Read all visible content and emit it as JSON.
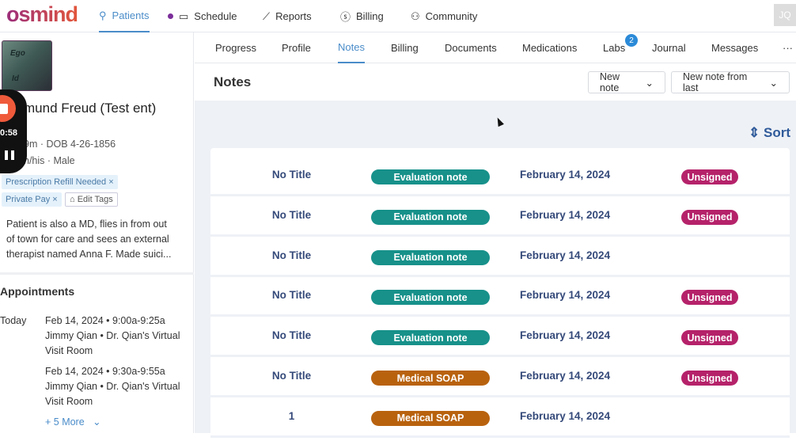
{
  "nav": {
    "logo": "osmind",
    "items": [
      {
        "label": "Patients",
        "icon": "person-icon"
      },
      {
        "label": "Schedule",
        "icon": "calendar-icon"
      },
      {
        "label": "Reports",
        "icon": "chart-icon"
      },
      {
        "label": "Billing",
        "icon": "dollar-icon"
      },
      {
        "label": "Community",
        "icon": "people-icon"
      }
    ],
    "avatar": "JQ"
  },
  "patient": {
    "name": "mund Freud (Test ent)",
    "age_dob": "9m · DOB 4-26-1856",
    "pronouns": "n/his · Male",
    "tags": [
      "Prescription Refill Needed ×",
      "Private Pay ×"
    ],
    "edit_tags": "Edit Tags",
    "note": "Patient is also a MD, flies in from out of town for care and sees an external therapist named Anna F. Made suici..."
  },
  "recorder": {
    "time": "0:58"
  },
  "appointments": {
    "heading": "Appointments",
    "today": "Today",
    "items": [
      {
        "line1": "Feb 14, 2024 • 9:00a-9:25a",
        "line2": "Jimmy Qian • Dr. Qian's Virtual",
        "line3": "Visit Room"
      },
      {
        "line1": "Feb 14, 2024 • 9:30a-9:55a",
        "line2": "Jimmy Qian • Dr. Qian's Virtual",
        "line3": "Visit Room"
      }
    ],
    "more": "+ 5 More"
  },
  "tabs": [
    "Progress",
    "Profile",
    "Notes",
    "Billing",
    "Documents",
    "Medications",
    "Labs",
    "Journal",
    "Messages",
    "···"
  ],
  "labs_badge": "2",
  "notes": {
    "heading": "Notes",
    "new_note": "New note",
    "new_from_last": "New note from last",
    "sort": "Sort",
    "rows": [
      {
        "title": "No Title",
        "type": "Evaluation note",
        "date": "February 14, 2024",
        "status": "Unsigned"
      },
      {
        "title": "No Title",
        "type": "Evaluation note",
        "date": "February 14, 2024",
        "status": "Unsigned"
      },
      {
        "title": "No Title",
        "type": "Evaluation note",
        "date": "February 14, 2024",
        "status": ""
      },
      {
        "title": "No Title",
        "type": "Evaluation note",
        "date": "February 14, 2024",
        "status": "Unsigned"
      },
      {
        "title": "No Title",
        "type": "Evaluation note",
        "date": "February 14, 2024",
        "status": "Unsigned"
      },
      {
        "title": "No Title",
        "type": "Medical SOAP",
        "date": "February 14, 2024",
        "status": "Unsigned"
      },
      {
        "title": "1",
        "type": "Medical SOAP",
        "date": "February 14, 2024",
        "status": ""
      }
    ]
  },
  "colors": {
    "evaluation": "#17918a",
    "soap": "#b8620e",
    "unsigned": "#b5226a",
    "accent": "#4a8cc9"
  }
}
